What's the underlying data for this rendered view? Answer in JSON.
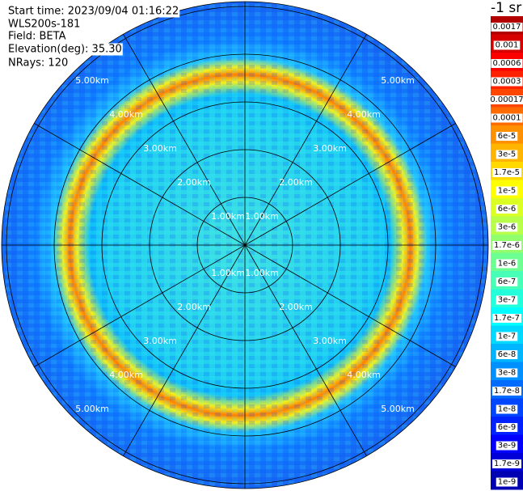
{
  "info": [
    "Start time: 2023/09/04 01:16:22",
    "WLS200s-181",
    "Field: BETA",
    "Elevation(deg): 35.30",
    "NRays: 120"
  ],
  "range_labels": [
    "1.00km",
    "2.00km",
    "3.00km",
    "4.00km",
    "5.00km"
  ],
  "colorbar": {
    "title": "-1 sr",
    "labels": [
      "0.0017",
      "0.001",
      "0.0006",
      "0.0003",
      "0.00017",
      "0.0001",
      "6e-5",
      "3e-5",
      "1.7e-5",
      "1e-5",
      "6e-6",
      "3e-6",
      "1.7e-6",
      "1e-6",
      "6e-7",
      "3e-7",
      "1.7e-7",
      "1e-7",
      "6e-8",
      "3e-8",
      "1.7e-8",
      "1e-8",
      "6e-9",
      "3e-9",
      "1.7e-9",
      "1e-9"
    ]
  }
}
